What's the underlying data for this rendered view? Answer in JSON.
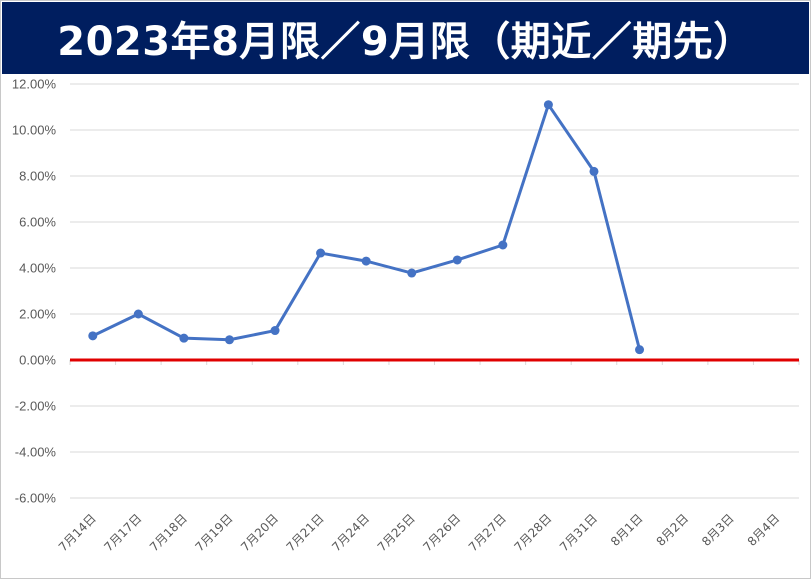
{
  "chart_data": {
    "type": "line",
    "title": "2023年8月限／9月限（期近／期先）",
    "xlabel": "",
    "ylabel": "",
    "categories": [
      "7月14日",
      "7月17日",
      "7月18日",
      "7月19日",
      "7月20日",
      "7月21日",
      "7月24日",
      "7月25日",
      "7月26日",
      "7月27日",
      "7月28日",
      "7月31日",
      "8月1日",
      "8月2日",
      "8月3日",
      "8月4日"
    ],
    "series": [
      {
        "values": [
          1.05,
          2.0,
          0.95,
          0.88,
          1.28,
          4.65,
          4.3,
          3.78,
          4.35,
          5.0,
          11.1,
          8.2,
          0.45,
          null,
          null,
          null
        ]
      }
    ],
    "ylim": [
      -6,
      12
    ],
    "yticks": [
      12,
      10,
      8,
      6,
      4,
      2,
      0,
      -2,
      -4,
      -6
    ],
    "ytick_labels": [
      "12.00%",
      "10.00%",
      "8.00%",
      "6.00%",
      "4.00%",
      "2.00%",
      "0.00%",
      "-2.00%",
      "-4.00%",
      "-6.00%"
    ],
    "grid": true,
    "colors": {
      "title_bg": "#001e5f",
      "title_text": "#ffffff",
      "line": "#4472c4",
      "zero_line": "#e00000",
      "grid": "#d9d9d9",
      "tick_text": "#595959"
    }
  }
}
